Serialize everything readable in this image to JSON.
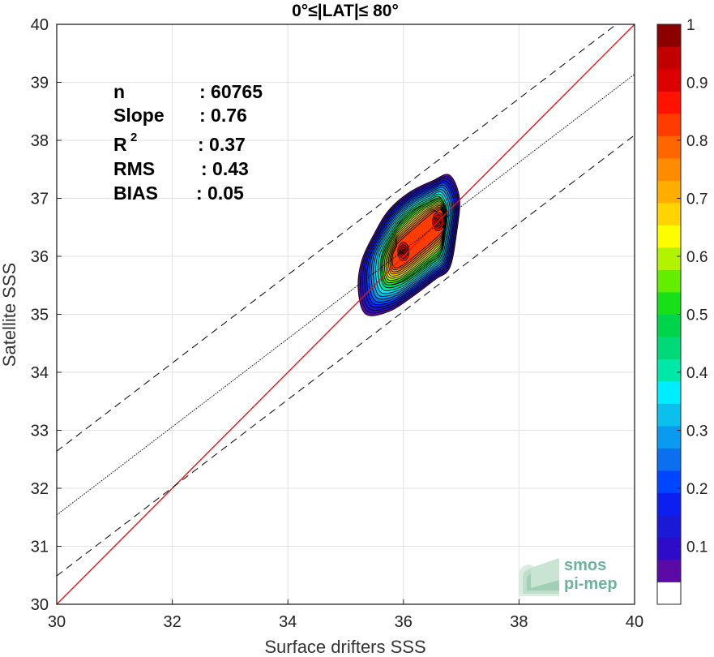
{
  "chart_data": {
    "type": "heatmap",
    "title": "0°≤|LAT|≤ 80°",
    "xlabel": "Surface drifters SSS",
    "ylabel": "Satellite SSS",
    "xlim": [
      30,
      40
    ],
    "ylim": [
      30,
      40
    ],
    "x_ticks": [
      "30",
      "32",
      "34",
      "36",
      "38",
      "40"
    ],
    "y_ticks": [
      "30",
      "31",
      "32",
      "33",
      "34",
      "35",
      "36",
      "37",
      "38",
      "39",
      "40"
    ],
    "grid": true,
    "stats": [
      {
        "label": "n",
        "value": ": 60765"
      },
      {
        "label": "Slope",
        "value": ": 0.76"
      },
      {
        "label": "R",
        "sup": "2",
        "value": ": 0.37"
      },
      {
        "label": "RMS",
        "value": ": 0.43"
      },
      {
        "label": "BIAS",
        "value": ": 0.05"
      }
    ],
    "lines": [
      {
        "role": "one-to-one",
        "color": "#e8141b",
        "style": "solid",
        "points": [
          [
            30,
            30
          ],
          [
            40,
            40
          ]
        ]
      },
      {
        "role": "regression",
        "color": "#000000",
        "style": "dotted",
        "points": [
          [
            30,
            31.54
          ],
          [
            40,
            39.14
          ]
        ]
      },
      {
        "role": "upper-bound",
        "color": "#000000",
        "style": "dashed",
        "points": [
          [
            30,
            32.64
          ],
          [
            40,
            40.24
          ]
        ]
      },
      {
        "role": "lower-bound",
        "color": "#000000",
        "style": "dashed",
        "points": [
          [
            30,
            30.49
          ],
          [
            40,
            38.09
          ]
        ]
      }
    ],
    "density_peaks": [
      {
        "x": 36.0,
        "y": 36.08,
        "value": 0.95
      },
      {
        "x": 36.6,
        "y": 36.6,
        "value": 1.0
      }
    ],
    "density_outer_contour": [
      [
        35.35,
        35.0
      ],
      [
        35.75,
        35.05
      ],
      [
        36.15,
        35.3
      ],
      [
        36.55,
        35.6
      ],
      [
        36.8,
        35.8
      ],
      [
        36.92,
        36.4
      ],
      [
        36.97,
        37.0
      ],
      [
        36.8,
        37.4
      ],
      [
        36.5,
        37.3
      ],
      [
        36.1,
        37.1
      ],
      [
        35.75,
        36.8
      ],
      [
        35.5,
        36.4
      ],
      [
        35.27,
        35.9
      ],
      [
        35.22,
        35.4
      ]
    ],
    "colorbar": {
      "min": 0,
      "max": 1,
      "ticks": [
        "0.1",
        "0.2",
        "0.3",
        "0.4",
        "0.5",
        "0.6",
        "0.7",
        "0.8",
        "0.9",
        "1"
      ],
      "colors": [
        "#ffffff",
        "#5b0aa8",
        "#2d0bc8",
        "#1a1ad6",
        "#0b1ff0",
        "#0045ff",
        "#0b6ff0",
        "#0a9aef",
        "#0cc0ee",
        "#00ecff",
        "#00e8a8",
        "#00d977",
        "#00d44b",
        "#18e018",
        "#63ee00",
        "#b4f300",
        "#fdfd00",
        "#ffd400",
        "#ffae00",
        "#ff8c00",
        "#ff6600",
        "#ff3c00",
        "#ff1300",
        "#dd0000",
        "#c10000",
        "#8d0000"
      ]
    }
  },
  "logo": {
    "line1": "smos",
    "line2": "pi-mep"
  }
}
